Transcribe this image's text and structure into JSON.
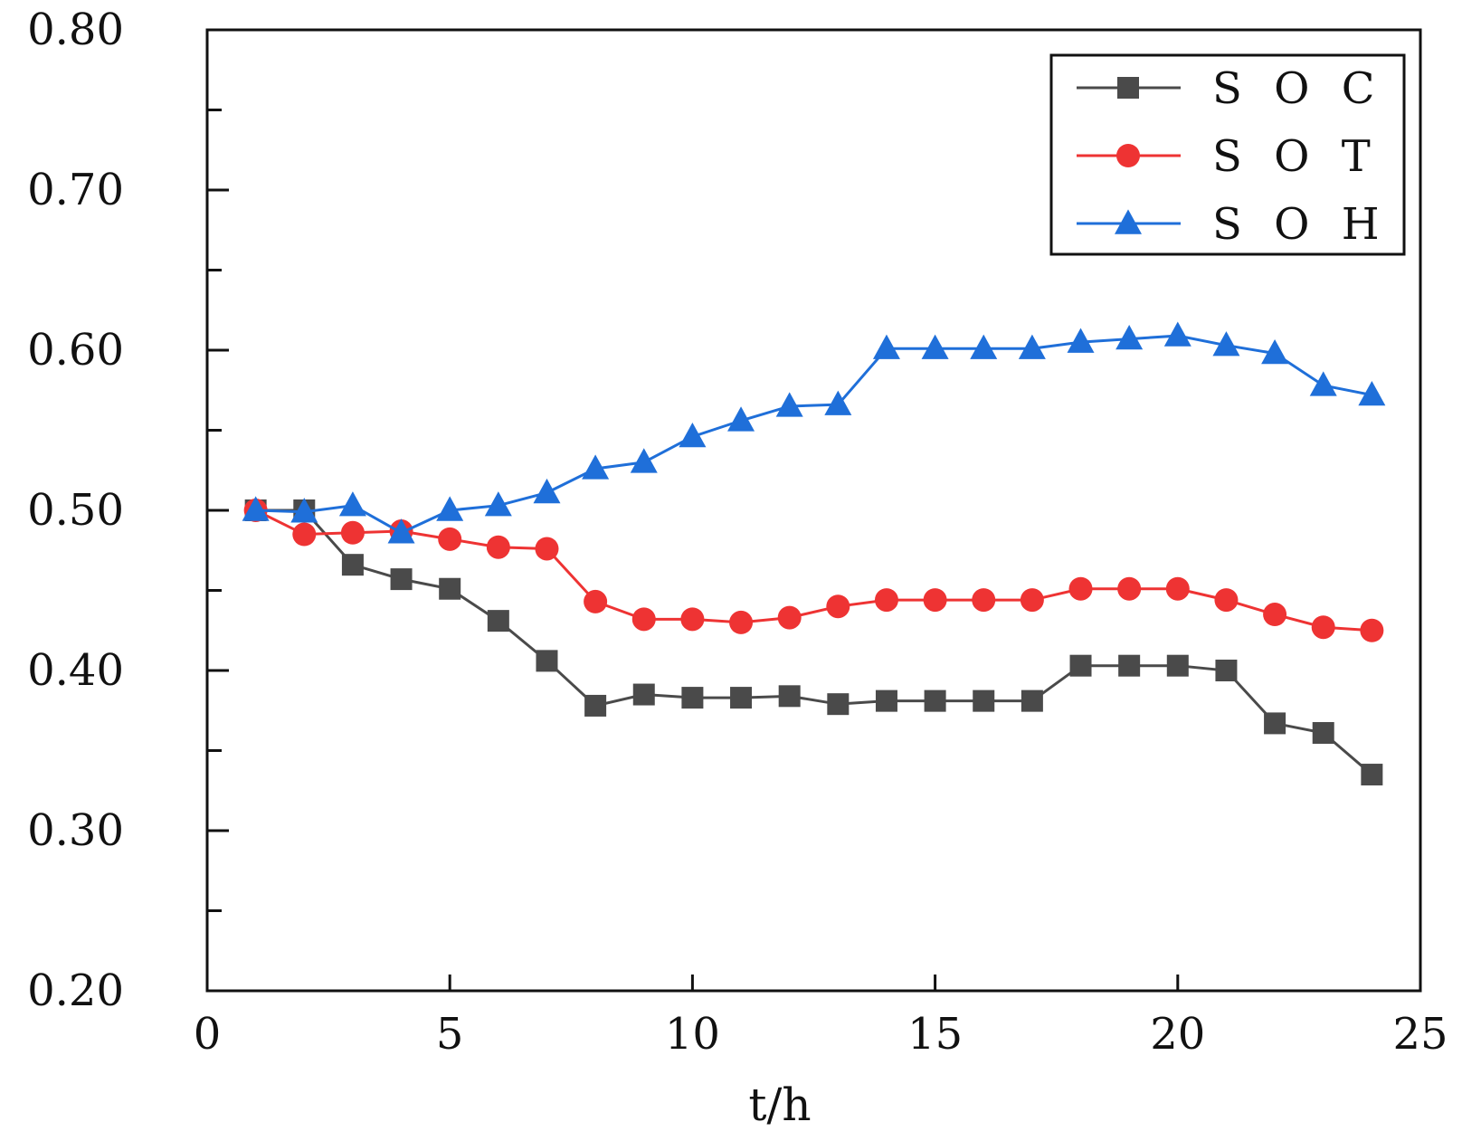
{
  "chart_data": {
    "type": "line",
    "title": "",
    "xlabel": "t/h",
    "ylabel": "",
    "xlim": [
      0,
      25
    ],
    "ylim": [
      0.2,
      0.8
    ],
    "xticks": [
      0,
      5,
      10,
      15,
      20,
      25
    ],
    "xtick_labels": [
      "0",
      "5",
      "10",
      "15",
      "20",
      "25"
    ],
    "yticks": [
      0.2,
      0.3,
      0.4,
      0.5,
      0.6,
      0.7,
      0.8
    ],
    "ytick_labels": [
      "0.20",
      "0.30",
      "0.40",
      "0.50",
      "0.60",
      "0.70",
      "0.80"
    ],
    "yminor_ticks": [
      0.25,
      0.35,
      0.45,
      0.55,
      0.65,
      0.75
    ],
    "grid": false,
    "legend_position": "top-right",
    "x": [
      1,
      2,
      3,
      4,
      5,
      6,
      7,
      8,
      9,
      10,
      11,
      12,
      13,
      14,
      15,
      16,
      17,
      18,
      19,
      20,
      21,
      22,
      23,
      24
    ],
    "series": [
      {
        "name": "SOC",
        "label": "S O C",
        "color": "#4a4a4a",
        "marker": "square",
        "values": [
          0.5,
          0.5,
          0.466,
          0.457,
          0.451,
          0.431,
          0.406,
          0.378,
          0.385,
          0.383,
          0.383,
          0.384,
          0.379,
          0.381,
          0.381,
          0.381,
          0.381,
          0.403,
          0.403,
          0.403,
          0.4,
          0.367,
          0.361,
          0.335
        ]
      },
      {
        "name": "SOT",
        "label": "S O T",
        "color": "#ee3333",
        "marker": "circle",
        "values": [
          0.5,
          0.485,
          0.486,
          0.487,
          0.482,
          0.477,
          0.476,
          0.443,
          0.432,
          0.432,
          0.43,
          0.433,
          0.44,
          0.444,
          0.444,
          0.444,
          0.444,
          0.451,
          0.451,
          0.451,
          0.444,
          0.435,
          0.427,
          0.425
        ]
      },
      {
        "name": "SOH",
        "label": "S O H",
        "color": "#1f6fd9",
        "marker": "triangle",
        "values": [
          0.5,
          0.499,
          0.503,
          0.486,
          0.5,
          0.503,
          0.511,
          0.526,
          0.53,
          0.546,
          0.556,
          0.565,
          0.566,
          0.601,
          0.601,
          0.601,
          0.601,
          0.605,
          0.607,
          0.609,
          0.603,
          0.598,
          0.578,
          0.572
        ]
      }
    ]
  }
}
